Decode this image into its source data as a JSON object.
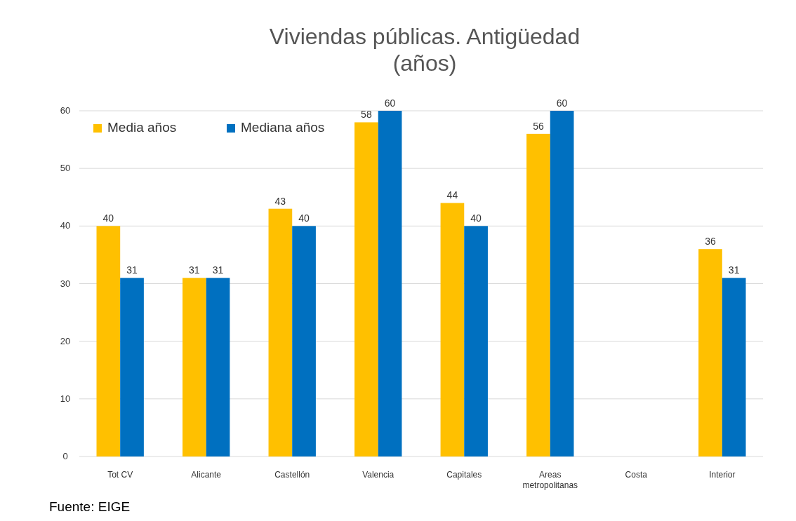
{
  "chart_data": {
    "type": "bar",
    "title": "Viviendas públicas. Antigüedad\n(años)",
    "categories": [
      "Tot CV",
      "Alicante",
      "Castellón",
      "Valencia",
      "Capitales",
      "Areas metropolitanas",
      "Costa",
      "Interior"
    ],
    "series": [
      {
        "name": "Media años",
        "color": "#ffc000",
        "values": [
          40,
          31,
          43,
          58,
          44,
          56,
          null,
          36
        ]
      },
      {
        "name": "Mediana años",
        "color": "#0070c0",
        "values": [
          31,
          31,
          40,
          60,
          40,
          60,
          null,
          31
        ]
      }
    ],
    "ylim": [
      0,
      60
    ],
    "yticks": [
      0,
      10,
      20,
      30,
      40,
      50,
      60
    ],
    "grid": "y",
    "legend": "top left",
    "data_labels": true,
    "annotations": [
      "Fuente: EIGE"
    ]
  }
}
